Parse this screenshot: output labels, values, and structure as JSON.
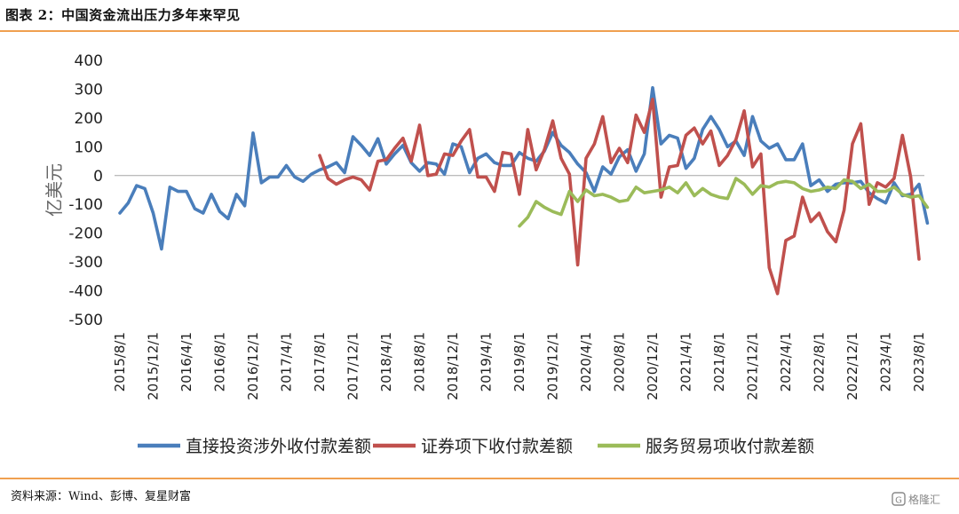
{
  "header": {
    "title": "图表 2：中国资金流出压力多年来罕见"
  },
  "footer": {
    "source": "资料来源：Wind、彭博、复星财富"
  },
  "watermark": {
    "text": "格隆汇"
  },
  "colors": {
    "accent_rule": "#f0a050"
  },
  "chart_data": {
    "type": "line",
    "ylabel": "亿美元",
    "ylim": [
      -500,
      400
    ],
    "yticks": [
      400,
      300,
      200,
      100,
      0,
      -100,
      -200,
      -300,
      -400,
      -500
    ],
    "x_tick_labels": [
      "2015/8/1",
      "2015/12/1",
      "2016/4/1",
      "2016/8/1",
      "2016/12/1",
      "2017/4/1",
      "2017/8/1",
      "2017/12/1",
      "2018/4/1",
      "2018/8/1",
      "2018/12/1",
      "2019/4/1",
      "2019/8/1",
      "2019/12/1",
      "2020/4/1",
      "2020/8/1",
      "2020/12/1",
      "2021/4/1",
      "2021/8/1",
      "2021/12/1",
      "2022/4/1",
      "2022/8/1",
      "2022/12/1",
      "2023/4/1",
      "2023/8/1"
    ],
    "x_tick_step_months": 4,
    "x_start": "2015/8",
    "grid": false,
    "legend_position": "bottom",
    "series": [
      {
        "name": "直接投资涉外收付款差额",
        "color": "#4a7ebb",
        "start": "2015/8",
        "values": [
          -130,
          -95,
          -35,
          -45,
          -130,
          -255,
          -40,
          -55,
          -55,
          -115,
          -130,
          -65,
          -125,
          -150,
          -65,
          -105,
          148,
          -25,
          -5,
          -5,
          35,
          -5,
          -20,
          5,
          20,
          30,
          45,
          10,
          135,
          105,
          70,
          128,
          40,
          75,
          105,
          45,
          15,
          45,
          40,
          5,
          110,
          100,
          10,
          60,
          75,
          45,
          35,
          35,
          80,
          60,
          50,
          85,
          150,
          105,
          80,
          40,
          10,
          -55,
          30,
          5,
          65,
          90,
          15,
          75,
          305,
          110,
          140,
          130,
          25,
          60,
          160,
          205,
          160,
          100,
          120,
          70,
          205,
          120,
          95,
          110,
          55,
          55,
          110,
          -35,
          -15,
          -55,
          -30,
          -25,
          -25,
          -20,
          -60,
          -80,
          -95,
          -25,
          -70,
          -65,
          -30,
          -165
        ]
      },
      {
        "name": "证券项下收付款差额",
        "color": "#c0504d",
        "start": "2017/8",
        "values": [
          70,
          -10,
          -30,
          -15,
          -5,
          -15,
          -50,
          50,
          55,
          95,
          130,
          50,
          175,
          0,
          5,
          75,
          70,
          120,
          160,
          -5,
          -5,
          -55,
          80,
          75,
          -65,
          160,
          20,
          90,
          190,
          60,
          5,
          -310,
          60,
          110,
          205,
          45,
          95,
          45,
          210,
          150,
          265,
          -75,
          30,
          35,
          140,
          165,
          110,
          155,
          35,
          70,
          125,
          225,
          30,
          75,
          -320,
          -410,
          -225,
          -210,
          -75,
          -160,
          -130,
          -195,
          -230,
          -120,
          110,
          180,
          -100,
          -25,
          -40,
          -10,
          140,
          -5,
          -290
        ]
      },
      {
        "name": "服务贸易项收付款差额",
        "color": "#9bbb59",
        "start": "2019/8",
        "values": [
          -175,
          -145,
          -90,
          -110,
          -125,
          -135,
          -55,
          -90,
          -50,
          -70,
          -65,
          -75,
          -90,
          -85,
          -40,
          -60,
          -55,
          -50,
          -40,
          -60,
          -25,
          -70,
          -45,
          -65,
          -75,
          -80,
          -10,
          -30,
          -65,
          -35,
          -40,
          -25,
          -20,
          -25,
          -45,
          -55,
          -50,
          -40,
          -45,
          -15,
          -20,
          -45,
          -30,
          -55,
          -55,
          -40,
          -65,
          -75,
          -70,
          -110
        ]
      }
    ]
  }
}
